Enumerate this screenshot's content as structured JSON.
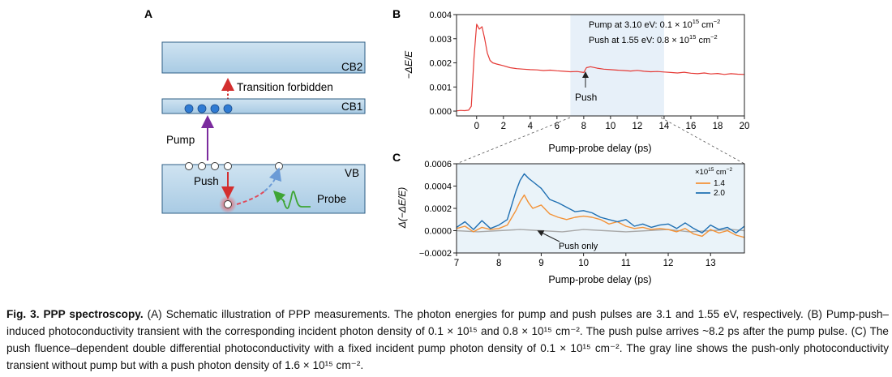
{
  "panel_a": {
    "letter": "A",
    "cb2_label": "CB2",
    "cb1_label": "CB1",
    "vb_label": "VB",
    "transition_label": "Transition forbidden",
    "pump_label": "Pump",
    "push_label": "Push",
    "probe_label": "Probe"
  },
  "chart_data": [
    {
      "panel": "B",
      "type": "line",
      "xlabel": "Pump-probe delay (ps)",
      "ylabel": "−ΔE/E",
      "xlim": [
        -1.5,
        20
      ],
      "ylim": [
        -0.0002,
        0.004
      ],
      "xticks": [
        "0",
        "2",
        "4",
        "6",
        "8",
        "10",
        "12",
        "14",
        "16",
        "18",
        "20"
      ],
      "yticks": [
        "0.000",
        "0.001",
        "0.002",
        "0.003",
        "0.004"
      ],
      "annotations": {
        "pump_text": "Pump at 3.10 eV:  0.1 × 10",
        "pump_sup": "15",
        "pump_unit": " cm",
        "pump_unit_sup": "−2",
        "push_text": "Push at 1.55 eV:  0.8 × 10",
        "push_sup": "15",
        "push_unit": " cm",
        "push_unit_sup": "−2",
        "push_arrow_label": "Push"
      },
      "highlight_range": [
        7,
        14
      ],
      "series": [
        {
          "color": "#e53935",
          "x": [
            -1.5,
            -1.2,
            -0.9,
            -0.6,
            -0.4,
            -0.2,
            0,
            0.2,
            0.4,
            0.6,
            0.8,
            1.0,
            1.2,
            1.5,
            2,
            2.5,
            3,
            3.5,
            4,
            4.5,
            5,
            5.5,
            6,
            6.5,
            7,
            7.5,
            8,
            8.2,
            8.5,
            9,
            9.5,
            10,
            10.5,
            11,
            11.5,
            12,
            12.5,
            13,
            13.5,
            14,
            14.5,
            15,
            15.5,
            16,
            16.5,
            17,
            17.5,
            18,
            18.5,
            19,
            19.5,
            20
          ],
          "y": [
            1e-05,
            3e-05,
            2e-05,
            4e-05,
            0.0002,
            0.0022,
            0.0036,
            0.0034,
            0.0035,
            0.003,
            0.0024,
            0.0021,
            0.002,
            0.00195,
            0.00188,
            0.0018,
            0.00176,
            0.00174,
            0.00172,
            0.00171,
            0.00168,
            0.0017,
            0.00167,
            0.00165,
            0.00163,
            0.00164,
            0.0016,
            0.0018,
            0.00184,
            0.00178,
            0.00174,
            0.00172,
            0.0017,
            0.00168,
            0.00166,
            0.00169,
            0.00165,
            0.00163,
            0.00164,
            0.00162,
            0.0016,
            0.00158,
            0.00161,
            0.00157,
            0.00155,
            0.00158,
            0.00154,
            0.00156,
            0.00152,
            0.00155,
            0.00153,
            0.00152
          ]
        }
      ]
    },
    {
      "panel": "C",
      "type": "line",
      "xlabel": "Pump-probe delay (ps)",
      "ylabel": "Δ(−ΔE/E)",
      "xlim": [
        7,
        13.8
      ],
      "ylim": [
        -0.0002,
        0.0006
      ],
      "xticks": [
        "7",
        "8",
        "9",
        "10",
        "11",
        "12",
        "13"
      ],
      "yticks": [
        "−0.0002",
        "0.0000",
        "0.0002",
        "0.0004",
        "0.0006"
      ],
      "legend_title": "×10",
      "legend_title_sup": "15",
      "legend_title_unit": " cm",
      "legend_title_unit_sup": "−2",
      "legend_placement": "top-right",
      "annotation": "Push only",
      "series": [
        {
          "name": "1.4",
          "color": "#f39237",
          "x": [
            7,
            7.2,
            7.4,
            7.6,
            7.8,
            8.0,
            8.2,
            8.4,
            8.5,
            8.6,
            8.7,
            8.8,
            9.0,
            9.2,
            9.4,
            9.6,
            9.8,
            10.0,
            10.2,
            10.4,
            10.6,
            10.8,
            11.0,
            11.2,
            11.4,
            11.6,
            11.8,
            12.0,
            12.2,
            12.4,
            12.6,
            12.8,
            13.0,
            13.2,
            13.4,
            13.6,
            13.8
          ],
          "y": [
            2e-05,
            4e-05,
            -1e-05,
            3e-05,
            1e-05,
            2e-05,
            5e-05,
            0.00018,
            0.00026,
            0.00032,
            0.00025,
            0.0002,
            0.00023,
            0.00015,
            0.00012,
            0.0001,
            0.00012,
            0.00013,
            0.00012,
            0.0001,
            6e-05,
            8e-05,
            4e-05,
            2e-05,
            3e-05,
            1e-05,
            2e-05,
            1e-05,
            -1e-05,
            2e-05,
            -3e-05,
            -5e-05,
            1e-05,
            -2e-05,
            0.0,
            -4e-05,
            -6e-05
          ]
        },
        {
          "name": "2.0",
          "color": "#1f6fb2",
          "x": [
            7,
            7.2,
            7.4,
            7.6,
            7.8,
            8.0,
            8.2,
            8.4,
            8.5,
            8.6,
            8.7,
            8.8,
            9.0,
            9.2,
            9.4,
            9.6,
            9.8,
            10.0,
            10.2,
            10.4,
            10.6,
            10.8,
            11.0,
            11.2,
            11.4,
            11.6,
            11.8,
            12.0,
            12.2,
            12.4,
            12.6,
            12.8,
            13.0,
            13.2,
            13.4,
            13.6,
            13.8
          ],
          "y": [
            3e-05,
            8e-05,
            1e-05,
            9e-05,
            2e-05,
            5e-05,
            0.0001,
            0.00035,
            0.00045,
            0.00051,
            0.00047,
            0.00044,
            0.00038,
            0.00028,
            0.00025,
            0.00021,
            0.00017,
            0.00018,
            0.00016,
            0.00012,
            0.0001,
            8e-05,
            0.0001,
            4e-05,
            6e-05,
            3e-05,
            5e-05,
            6e-05,
            2e-05,
            7e-05,
            2e-05,
            -2e-05,
            5e-05,
            1e-05,
            3e-05,
            -2e-05,
            4e-05
          ]
        },
        {
          "name": "Push only",
          "color": "#a9a9a9",
          "x": [
            7,
            7.5,
            8,
            8.5,
            9,
            9.5,
            10,
            10.5,
            11,
            11.5,
            12,
            12.5,
            13,
            13.5,
            13.8
          ],
          "y": [
            0.0,
            -1e-05,
            0.0,
            1e-05,
            0.0,
            -1e-05,
            1e-05,
            0.0,
            -1e-05,
            0.0,
            1e-05,
            -1e-05,
            0.0,
            1e-05,
            0.0
          ]
        }
      ]
    }
  ],
  "caption": {
    "prefix": "Fig. 3. PPP spectroscopy.",
    "text": " (A) Schematic illustration of PPP measurements. The photon energies for pump and push pulses are 3.1 and 1.55 eV, respectively. (B) Pump-push–induced photoconductivity transient with the corresponding incident photon density of 0.1 × 10¹⁵ and 0.8 × 10¹⁵ cm⁻². The push pulse arrives ~8.2 ps after the pump pulse. (C) The push fluence–dependent double differential photoconductivity with a fixed incident pump photon density of 0.1 × 10¹⁵ cm⁻². The gray line shows the push-only photoconductivity transient without pump but with a push photon density of 1.6 × 10¹⁵ cm⁻²."
  }
}
